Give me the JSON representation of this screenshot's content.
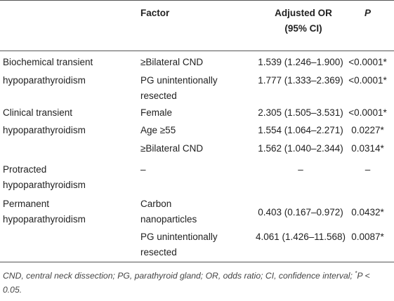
{
  "header": {
    "factor": "Factor",
    "or_line1": "Adjusted OR",
    "or_line2": "(95% CI)",
    "p": "P"
  },
  "rows": [
    {
      "outcome": "Biochemical transient",
      "factor": "≥Bilateral CND",
      "or": "1.539 (1.246–1.900)",
      "p": "<0.0001*"
    },
    {
      "outcome": "hypoparathyroidism",
      "factor": "PG unintentionally",
      "or": "1.777 (1.333–2.369)",
      "p": "<0.0001*"
    },
    {
      "outcome": "",
      "factor": "resected",
      "or": "",
      "p": ""
    },
    {
      "outcome": "Clinical transient",
      "factor": "Female",
      "or": "2.305 (1.505–3.531)",
      "p": "<0.0001*"
    },
    {
      "outcome": "hypoparathyroidism",
      "factor": "Age ≥55",
      "or": "1.554 (1.064–2.271)",
      "p": "0.0227*"
    },
    {
      "outcome": "",
      "factor": "≥Bilateral CND",
      "or": "1.562 (1.040–2.344)",
      "p": "0.0314*"
    },
    {
      "outcome": "Protracted",
      "factor": "–",
      "or": "–",
      "p": "–"
    },
    {
      "outcome": "hypoparathyroidism",
      "factor": "",
      "or": "",
      "p": ""
    },
    {
      "outcome": "Permanent",
      "factor": "Carbon",
      "or": "",
      "p": ""
    },
    {
      "outcome": "hypoparathyroidism",
      "factor": "nanoparticles",
      "or": "0.403 (0.167–0.972)",
      "p": "0.0432*"
    },
    {
      "outcome": "",
      "factor": "PG unintentionally",
      "or": "4.061 (1.426–11.568)",
      "p": "0.0087*"
    },
    {
      "outcome": "",
      "factor": "resected",
      "or": "",
      "p": ""
    }
  ],
  "footnote": {
    "text": "CND, central neck dissection; PG, parathyroid gland; OR, odds ratio; CI, confidence interval;",
    "sup": "*",
    "tail": "P < 0.05."
  }
}
